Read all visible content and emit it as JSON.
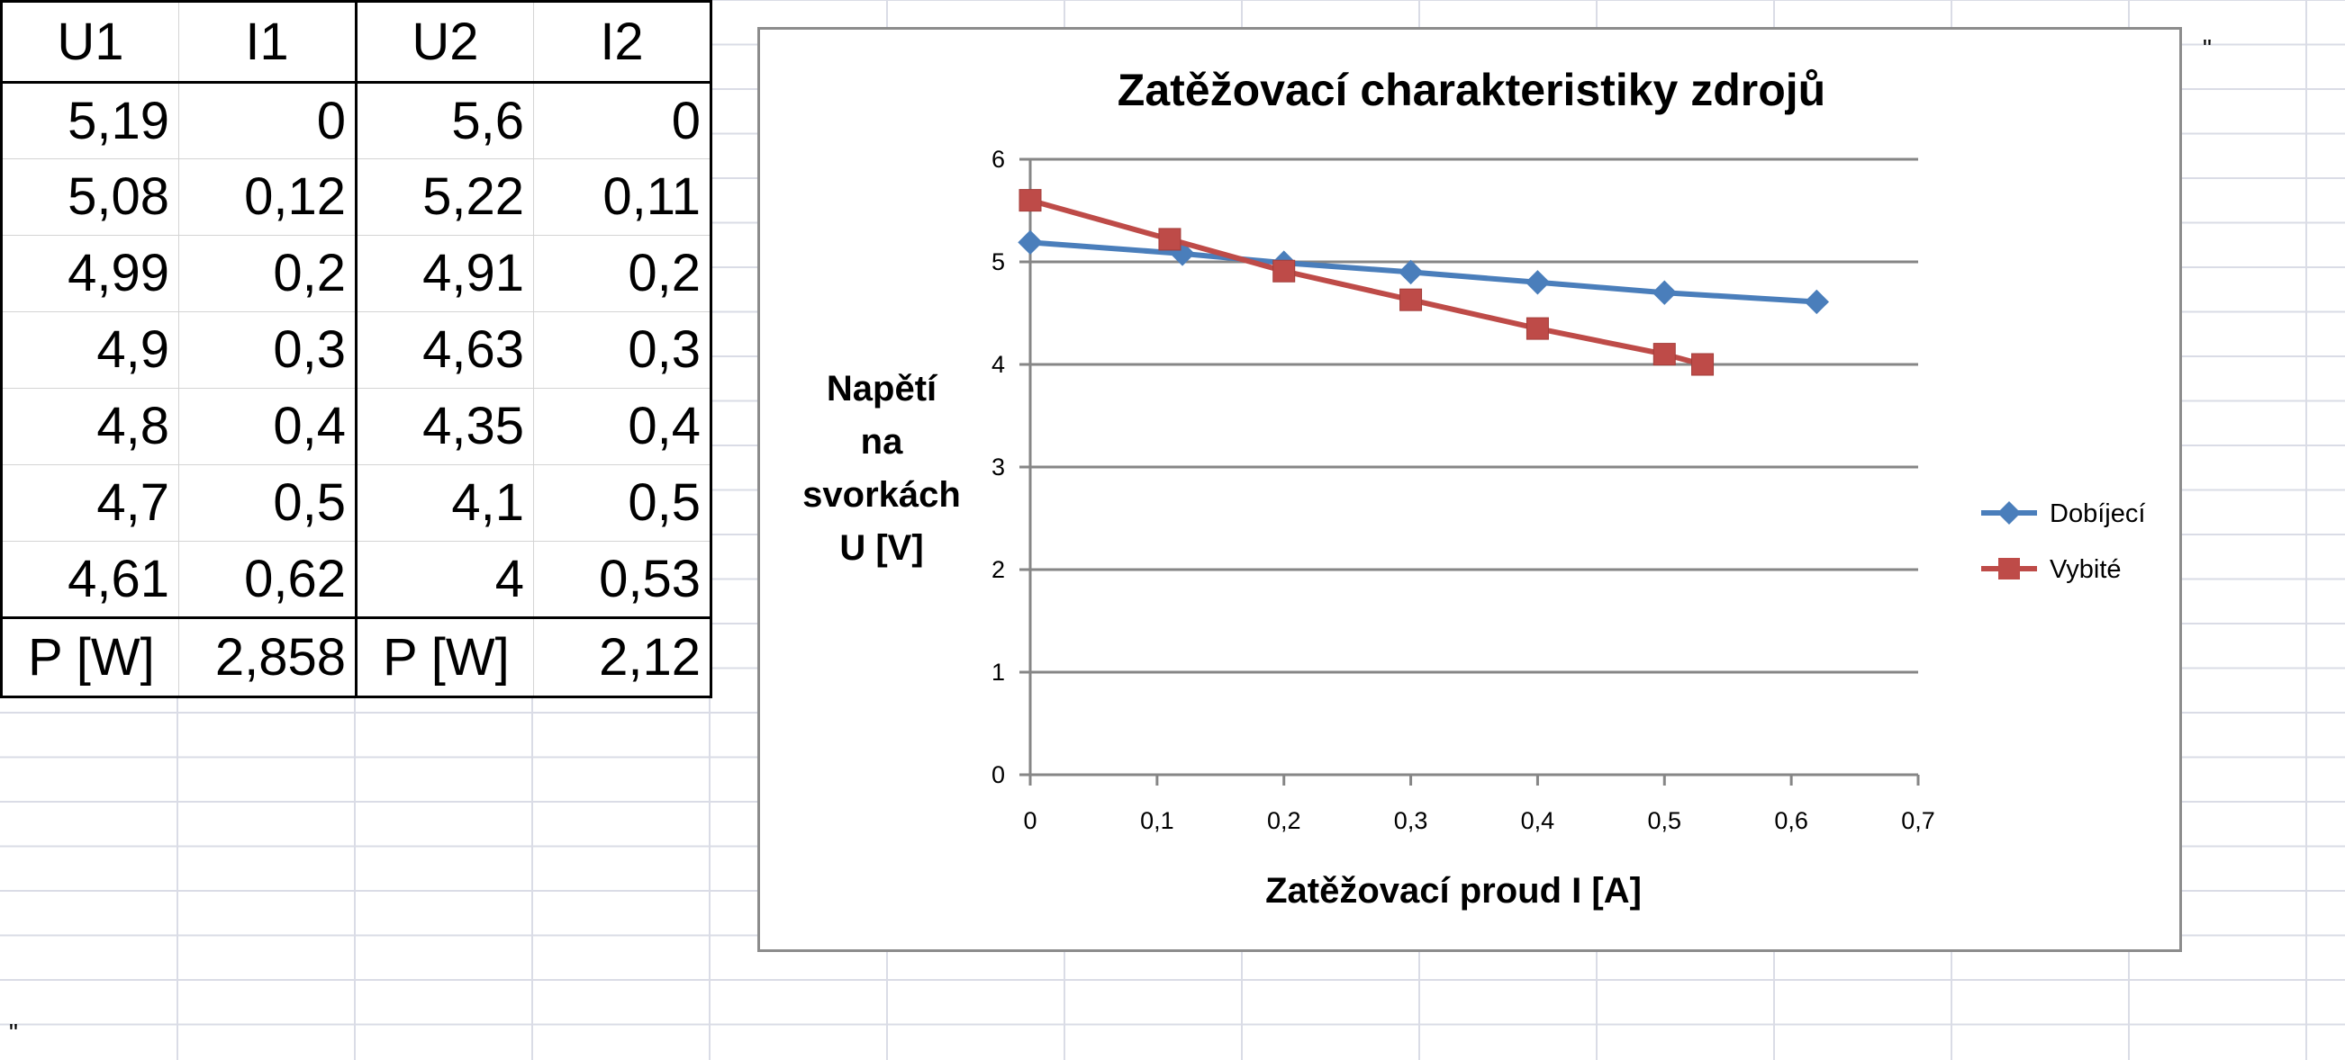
{
  "table": {
    "headers": [
      "U1",
      "I1",
      "U2",
      "I2"
    ],
    "rows": [
      [
        "5,19",
        "0",
        "5,6",
        "0"
      ],
      [
        "5,08",
        "0,12",
        "5,22",
        "0,11"
      ],
      [
        "4,99",
        "0,2",
        "4,91",
        "0,2"
      ],
      [
        "4,9",
        "0,3",
        "4,63",
        "0,3"
      ],
      [
        "4,8",
        "0,4",
        "4,35",
        "0,4"
      ],
      [
        "4,7",
        "0,5",
        "4,1",
        "0,5"
      ],
      [
        "4,61",
        "0,62",
        "4",
        "0,53"
      ]
    ],
    "power_row": [
      "P [W]",
      "2,858",
      "P [W]",
      "2,12"
    ]
  },
  "stray_marks": {
    "top_right": "\"",
    "bottom_left": "\""
  },
  "chart_data": {
    "type": "line",
    "title": "Zatěžovací charakteristiky zdrojů",
    "xlabel": "Zatěžovací proud    I [A]",
    "ylabel_lines": [
      "Napětí",
      "na",
      "svorkách",
      "U [V]"
    ],
    "xlim": [
      0,
      0.7
    ],
    "ylim": [
      0,
      6
    ],
    "x_ticks": [
      "0",
      "0,1",
      "0,2",
      "0,3",
      "0,4",
      "0,5",
      "0,6",
      "0,7"
    ],
    "y_ticks": [
      "0",
      "1",
      "2",
      "3",
      "4",
      "5",
      "6"
    ],
    "grid": "horizontal major",
    "legend_position": "right",
    "series": [
      {
        "name": "Dobíjecí",
        "color": "#4a7ebb",
        "marker": "diamond",
        "x": [
          0,
          0.12,
          0.2,
          0.3,
          0.4,
          0.5,
          0.62
        ],
        "y": [
          5.19,
          5.08,
          4.99,
          4.9,
          4.8,
          4.7,
          4.61
        ]
      },
      {
        "name": "Vybité",
        "color": "#be4b48",
        "marker": "square",
        "x": [
          0,
          0.11,
          0.2,
          0.3,
          0.4,
          0.5,
          0.53
        ],
        "y": [
          5.6,
          5.22,
          4.91,
          4.63,
          4.35,
          4.1,
          4.0
        ]
      }
    ]
  }
}
